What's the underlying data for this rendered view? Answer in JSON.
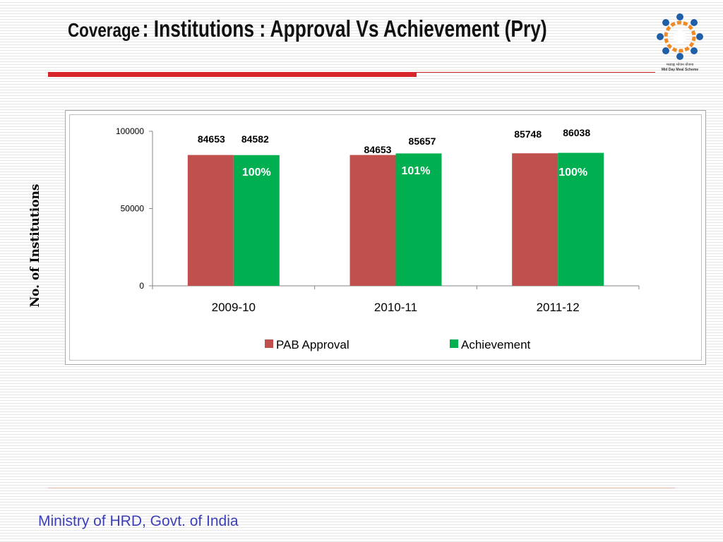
{
  "slide": {
    "title_lead": "Coverage",
    "title_rest": ": Institutions : Approval Vs Achievement (Pry)",
    "footer": "Ministry of HRD, Govt. of India"
  },
  "logo": {
    "line1": "मध्याह्न भोजन योजना",
    "line2": "Mid Day Meal Scheme"
  },
  "colors": {
    "accent_red": "#d7262b",
    "footer_blue": "#3b3fb8"
  },
  "chart_data": {
    "type": "bar",
    "categories": [
      "2009-10",
      "2010-11",
      "2011-12"
    ],
    "series": [
      {
        "name": "PAB Approval",
        "values": [
          84653,
          84653,
          85748
        ],
        "color": "#c0504d"
      },
      {
        "name": "Achievement",
        "values": [
          84582,
          85657,
          86038
        ],
        "color": "#00b050"
      }
    ],
    "percent_labels": [
      "100%",
      "101%",
      "100%"
    ],
    "ylabel": "No. of Institutions",
    "ylim": [
      0,
      100000
    ],
    "yticks": [
      0,
      50000,
      100000
    ],
    "legend_position": "bottom",
    "grid": false
  }
}
